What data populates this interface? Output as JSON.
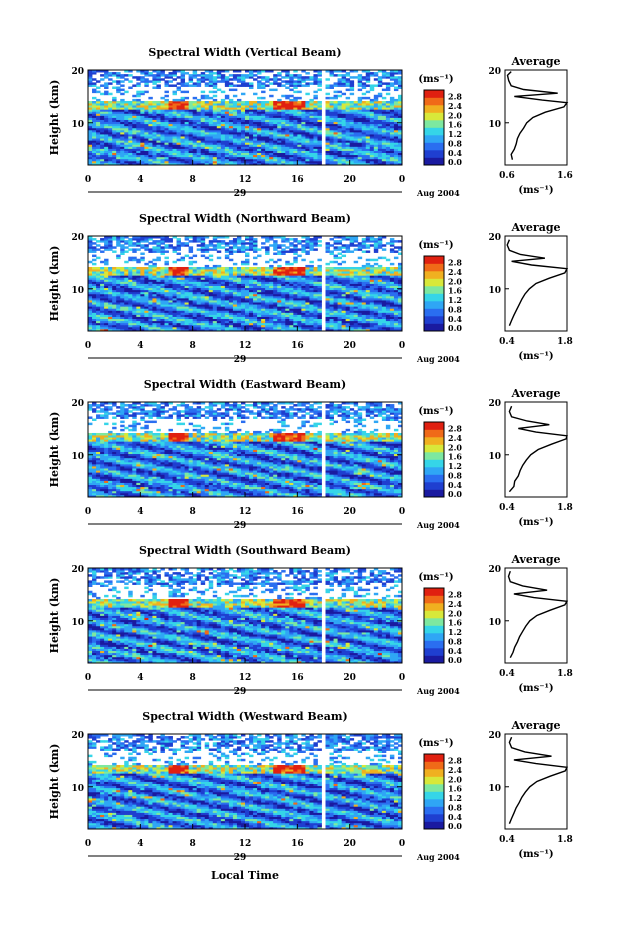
{
  "figure": {
    "xlabel": "Local Time",
    "date_label": "Aug 2004",
    "day_label": "29",
    "ylabel": "Height (km)",
    "colorbar_unit": "(ms⁻¹)",
    "colorbar_ticks": [
      "0.0",
      "0.4",
      "0.8",
      "1.2",
      "1.6",
      "2.0",
      "2.4",
      "2.8"
    ],
    "colormap": [
      "#1a1aa0",
      "#1f3fd0",
      "#2a6ef0",
      "#2fa6f5",
      "#35d5e8",
      "#7de8a0",
      "#d8e83a",
      "#f0b020",
      "#f06a18",
      "#e02010"
    ]
  },
  "chart_data": [
    {
      "type": "heatmap",
      "title": "Spectral Width (Vertical Beam)",
      "x_ticks": [
        "0",
        "4",
        "8",
        "12",
        "16",
        "20",
        "0"
      ],
      "y_ticks": [
        "20",
        "10"
      ],
      "xlim": [
        0,
        24
      ],
      "ylim": [
        2,
        20
      ],
      "avg_title": "Average",
      "avg_xticks": [
        "0.6",
        "1.6"
      ],
      "avg_xlabel": "(ms⁻¹)",
      "avg_xlim": [
        0.6,
        1.6
      ],
      "avg_profile": [
        [
          0.72,
          3
        ],
        [
          0.7,
          4
        ],
        [
          0.75,
          5
        ],
        [
          0.78,
          6
        ],
        [
          0.8,
          7
        ],
        [
          0.84,
          8
        ],
        [
          0.9,
          9
        ],
        [
          0.95,
          10
        ],
        [
          1.05,
          11
        ],
        [
          1.25,
          12
        ],
        [
          1.55,
          13
        ],
        [
          1.6,
          13.8
        ],
        [
          1.2,
          14.3
        ],
        [
          0.75,
          15
        ],
        [
          1.45,
          15.6
        ],
        [
          0.9,
          16.3
        ],
        [
          0.7,
          17
        ],
        [
          0.66,
          18
        ],
        [
          0.64,
          19
        ],
        [
          0.7,
          19.7
        ]
      ]
    },
    {
      "type": "heatmap",
      "title": "Spectral Width (Northward Beam)",
      "x_ticks": [
        "0",
        "4",
        "8",
        "12",
        "16",
        "20",
        "0"
      ],
      "y_ticks": [
        "20",
        "10"
      ],
      "xlim": [
        0,
        24
      ],
      "ylim": [
        2,
        20
      ],
      "avg_title": "Average",
      "avg_xticks": [
        "0.4",
        "1.8"
      ],
      "avg_xlabel": "(ms⁻¹)",
      "avg_xlim": [
        0.4,
        1.8
      ],
      "avg_profile": [
        [
          0.5,
          3
        ],
        [
          0.55,
          4
        ],
        [
          0.6,
          5
        ],
        [
          0.66,
          6
        ],
        [
          0.72,
          7
        ],
        [
          0.78,
          8
        ],
        [
          0.85,
          9
        ],
        [
          0.95,
          10
        ],
        [
          1.1,
          11
        ],
        [
          1.4,
          12
        ],
        [
          1.75,
          13
        ],
        [
          1.8,
          13.8
        ],
        [
          1.0,
          14.5
        ],
        [
          0.55,
          15.2
        ],
        [
          1.3,
          15.8
        ],
        [
          0.75,
          16.5
        ],
        [
          0.5,
          17.3
        ],
        [
          0.45,
          18.3
        ],
        [
          0.5,
          19.3
        ]
      ]
    },
    {
      "type": "heatmap",
      "title": "Spectral Width (Eastward Beam)",
      "x_ticks": [
        "0",
        "4",
        "8",
        "12",
        "16",
        "20",
        "0"
      ],
      "y_ticks": [
        "20",
        "10"
      ],
      "xlim": [
        0,
        24
      ],
      "ylim": [
        2,
        20
      ],
      "avg_title": "Average",
      "avg_xticks": [
        "0.4",
        "1.8"
      ],
      "avg_xlabel": "(ms⁻¹)",
      "avg_xlim": [
        0.4,
        1.8
      ],
      "avg_profile": [
        [
          0.5,
          3
        ],
        [
          0.6,
          4
        ],
        [
          0.62,
          5
        ],
        [
          0.7,
          6
        ],
        [
          0.74,
          7
        ],
        [
          0.8,
          8
        ],
        [
          0.88,
          9
        ],
        [
          0.98,
          10
        ],
        [
          1.15,
          11
        ],
        [
          1.45,
          12
        ],
        [
          1.78,
          13
        ],
        [
          1.8,
          13.6
        ],
        [
          1.1,
          14.3
        ],
        [
          0.7,
          15
        ],
        [
          1.4,
          15.7
        ],
        [
          0.9,
          16.4
        ],
        [
          0.55,
          17.2
        ],
        [
          0.5,
          18.2
        ],
        [
          0.55,
          19.2
        ]
      ]
    },
    {
      "type": "heatmap",
      "title": "Spectral Width (Southward Beam)",
      "x_ticks": [
        "0",
        "4",
        "8",
        "12",
        "16",
        "20",
        "0"
      ],
      "y_ticks": [
        "20",
        "10"
      ],
      "xlim": [
        0,
        24
      ],
      "ylim": [
        2,
        20
      ],
      "avg_title": "Average",
      "avg_xticks": [
        "0.4",
        "1.8"
      ],
      "avg_xlabel": "(ms⁻¹)",
      "avg_xlim": [
        0.4,
        1.8
      ],
      "avg_profile": [
        [
          0.52,
          3
        ],
        [
          0.58,
          4
        ],
        [
          0.62,
          5
        ],
        [
          0.68,
          6
        ],
        [
          0.73,
          7
        ],
        [
          0.8,
          8
        ],
        [
          0.87,
          9
        ],
        [
          0.96,
          10
        ],
        [
          1.12,
          11
        ],
        [
          1.42,
          12
        ],
        [
          1.75,
          13
        ],
        [
          1.8,
          13.7
        ],
        [
          1.05,
          14.4
        ],
        [
          0.6,
          15.1
        ],
        [
          1.35,
          15.8
        ],
        [
          0.8,
          16.6
        ],
        [
          0.52,
          17.4
        ],
        [
          0.48,
          18.4
        ],
        [
          0.52,
          19.4
        ]
      ]
    },
    {
      "type": "heatmap",
      "title": "Spectral Width (Westward Beam)",
      "x_ticks": [
        "0",
        "4",
        "8",
        "12",
        "16",
        "20",
        "0"
      ],
      "y_ticks": [
        "20",
        "10"
      ],
      "xlim": [
        0,
        24
      ],
      "ylim": [
        2,
        20
      ],
      "avg_title": "Average",
      "avg_xticks": [
        "0.4",
        "1.8"
      ],
      "avg_xlabel": "(ms⁻¹)",
      "avg_xlim": [
        0.4,
        1.8
      ],
      "avg_profile": [
        [
          0.5,
          3
        ],
        [
          0.55,
          4
        ],
        [
          0.6,
          5
        ],
        [
          0.65,
          6
        ],
        [
          0.72,
          7
        ],
        [
          0.78,
          8
        ],
        [
          0.86,
          9
        ],
        [
          0.96,
          10
        ],
        [
          1.12,
          11
        ],
        [
          1.42,
          12
        ],
        [
          1.76,
          13
        ],
        [
          1.8,
          13.7
        ],
        [
          1.1,
          14.4
        ],
        [
          0.6,
          15.1
        ],
        [
          1.45,
          15.8
        ],
        [
          0.85,
          16.6
        ],
        [
          0.55,
          17.4
        ],
        [
          0.5,
          18.4
        ],
        [
          0.55,
          19.4
        ]
      ]
    }
  ]
}
